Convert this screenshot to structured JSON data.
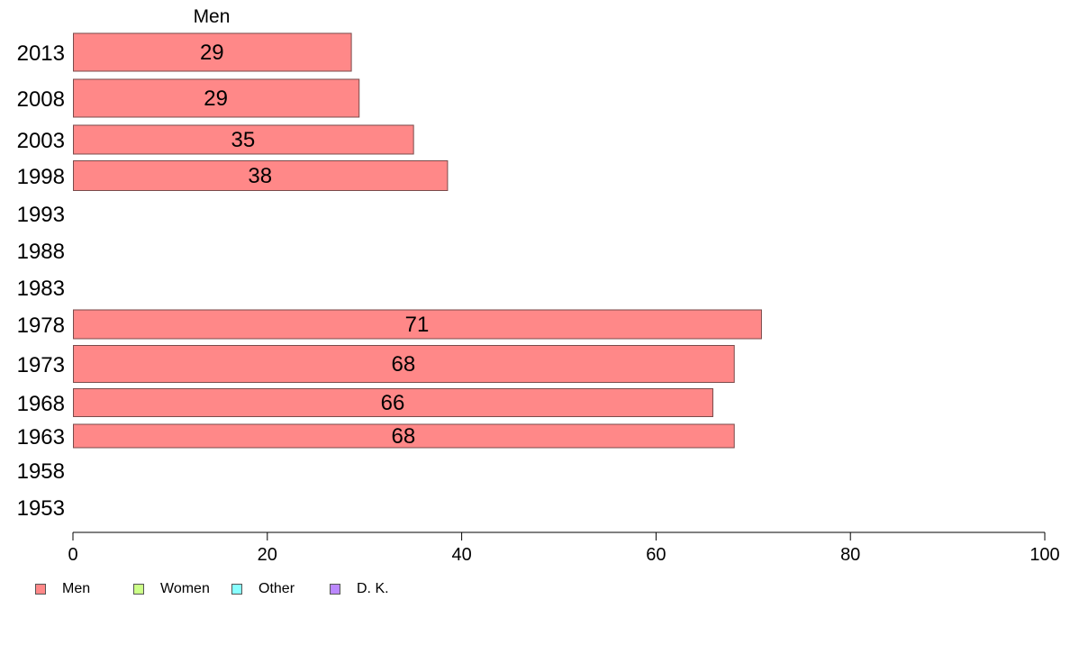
{
  "chart_data": {
    "type": "bar",
    "orientation": "horizontal",
    "series_label": "Men",
    "categories": [
      "2013",
      "2008",
      "2003",
      "1998",
      "1993",
      "1988",
      "1983",
      "1978",
      "1973",
      "1968",
      "1963",
      "1958",
      "1953"
    ],
    "values": [
      28.6,
      29.4,
      35.0,
      38.5,
      null,
      null,
      null,
      70.8,
      68.0,
      65.8,
      68.0,
      null,
      null
    ],
    "data_labels": [
      "29",
      "29",
      "35",
      "38",
      "",
      "",
      "",
      "71",
      "68",
      "66",
      "68",
      "",
      ""
    ],
    "xlim": [
      0,
      100
    ],
    "xticks": [
      "0",
      "20",
      "40",
      "60",
      "80",
      "100"
    ],
    "bar_color": "#ff8888",
    "bar_border_color": "#7a4a4a",
    "grid": false,
    "legend_position": "bottom-left",
    "legend": [
      {
        "label": "Men",
        "color": "#ff8888"
      },
      {
        "label": "Women",
        "color": "#ccff88"
      },
      {
        "label": "Other",
        "color": "#88ffff"
      },
      {
        "label": "D. K.",
        "color": "#bb88ff"
      }
    ]
  }
}
